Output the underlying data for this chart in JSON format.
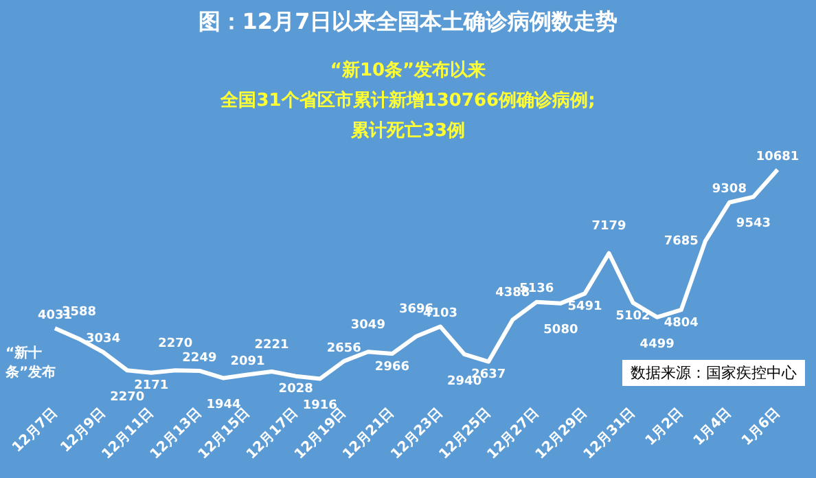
{
  "chart_data": {
    "type": "line",
    "title": "图：12月7日以来全国本土确诊病例数走势",
    "categories": [
      "12月7日",
      null,
      "12月9日",
      null,
      "12月11日",
      null,
      "12月13日",
      null,
      "12月15日",
      null,
      "12月17日",
      null,
      "12月19日",
      null,
      "12月21日",
      null,
      "12月23日",
      null,
      "12月25日",
      null,
      "12月27日",
      null,
      "12月29日",
      null,
      "12月31日",
      null,
      "1月2日",
      null,
      "1月4日",
      null,
      "1月6日"
    ],
    "series": [
      {
        "color": "#ffffff",
        "values": [
          4031,
          3588,
          3034,
          2270,
          2171,
          2270,
          2249,
          1944,
          2091,
          2221,
          2028,
          1916,
          2656,
          3049,
          2966,
          3696,
          4103,
          2940,
          2637,
          4388,
          5136,
          5080,
          5491,
          7179,
          5102,
          4499,
          4804,
          7685,
          9308,
          9543,
          10681
        ]
      }
    ],
    "data_labels": true,
    "marker": "none",
    "grid": false,
    "legend": false,
    "tick_labels": "x",
    "annotations": [
      "“新十条”发布",
      "“新10条”发布以来",
      "全国31个省区市累计新增130766例确诊病例;",
      "累计死亡33例",
      "数据来源：国家疾控中心"
    ]
  }
}
